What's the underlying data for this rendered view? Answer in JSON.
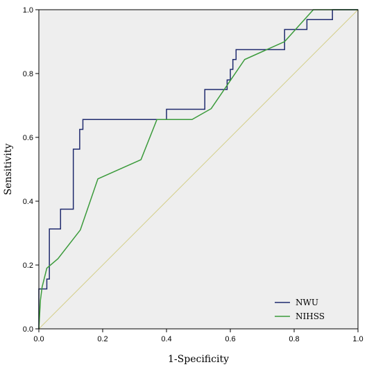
{
  "chart_data": {
    "type": "line",
    "xlabel": "1-Specificity",
    "ylabel": "Sensitivity",
    "xlim": [
      0,
      1
    ],
    "ylim": [
      0,
      1
    ],
    "x_ticks": [
      "0.0",
      "0.2",
      "0.4",
      "0.6",
      "0.8",
      "1.0"
    ],
    "y_ticks": [
      "0.0",
      "0.2",
      "0.4",
      "0.6",
      "0.8",
      "1.0"
    ],
    "grid": false,
    "background": "#eeeeee",
    "legend_position": "bottom-right",
    "series": [
      {
        "name": "NWU",
        "color": "#1f2a6e",
        "points": [
          [
            0,
            0
          ],
          [
            0,
            0.125
          ],
          [
            0.025,
            0.125
          ],
          [
            0.025,
            0.156
          ],
          [
            0.033,
            0.156
          ],
          [
            0.033,
            0.313
          ],
          [
            0.068,
            0.313
          ],
          [
            0.068,
            0.375
          ],
          [
            0.108,
            0.375
          ],
          [
            0.108,
            0.563
          ],
          [
            0.128,
            0.563
          ],
          [
            0.128,
            0.625
          ],
          [
            0.138,
            0.625
          ],
          [
            0.138,
            0.656
          ],
          [
            0.4,
            0.656
          ],
          [
            0.4,
            0.688
          ],
          [
            0.52,
            0.688
          ],
          [
            0.52,
            0.75
          ],
          [
            0.59,
            0.75
          ],
          [
            0.59,
            0.78
          ],
          [
            0.6,
            0.78
          ],
          [
            0.6,
            0.813
          ],
          [
            0.608,
            0.813
          ],
          [
            0.608,
            0.844
          ],
          [
            0.618,
            0.844
          ],
          [
            0.618,
            0.875
          ],
          [
            0.77,
            0.875
          ],
          [
            0.77,
            0.938
          ],
          [
            0.84,
            0.938
          ],
          [
            0.84,
            0.969
          ],
          [
            0.92,
            0.969
          ],
          [
            0.92,
            1.0
          ],
          [
            1.0,
            1.0
          ]
        ]
      },
      {
        "name": "NIHSS",
        "color": "#3a9a3a",
        "points": [
          [
            0,
            0
          ],
          [
            0.005,
            0.09
          ],
          [
            0.01,
            0.13
          ],
          [
            0.025,
            0.19
          ],
          [
            0.06,
            0.22
          ],
          [
            0.13,
            0.31
          ],
          [
            0.185,
            0.47
          ],
          [
            0.32,
            0.53
          ],
          [
            0.37,
            0.656
          ],
          [
            0.48,
            0.656
          ],
          [
            0.54,
            0.69
          ],
          [
            0.645,
            0.844
          ],
          [
            0.77,
            0.9
          ],
          [
            0.86,
            1.0
          ],
          [
            1.0,
            1.0
          ]
        ]
      },
      {
        "name": "",
        "color": "#d4cf8a",
        "points": [
          [
            0,
            0
          ],
          [
            1,
            1
          ]
        ]
      }
    ]
  }
}
